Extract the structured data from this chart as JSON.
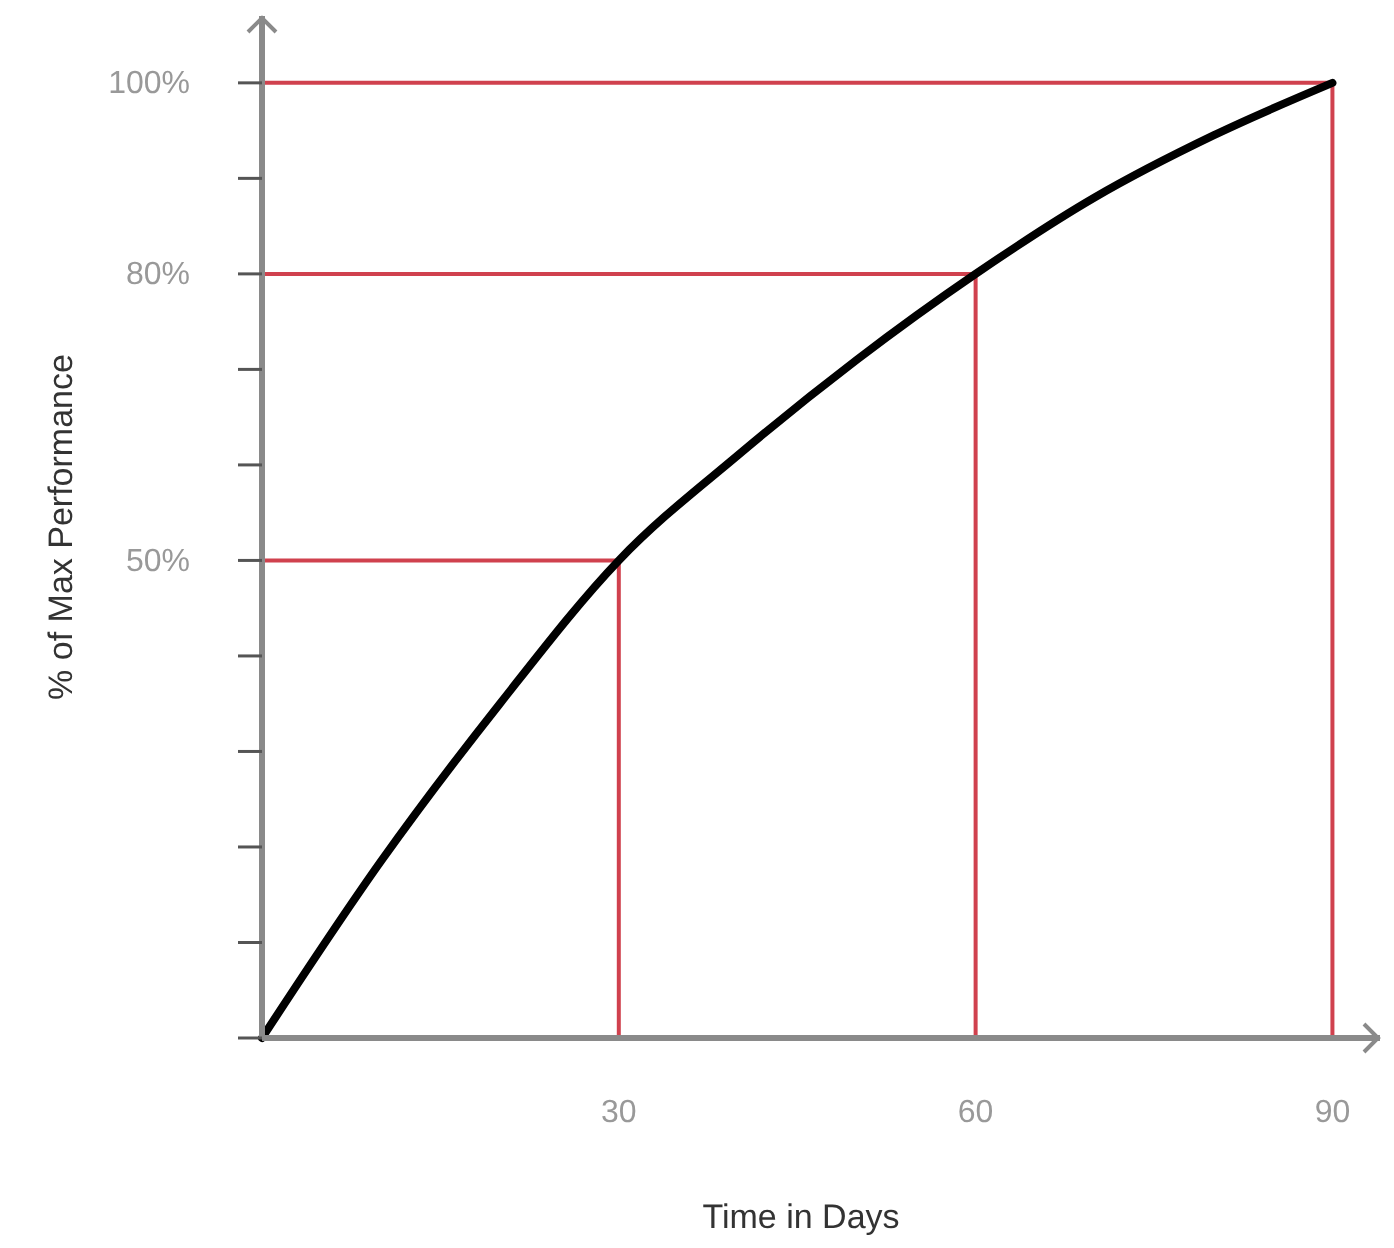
{
  "chart_data": {
    "type": "line",
    "xlabel": "Time in Days",
    "ylabel": "% of Max Performance",
    "x": [
      0,
      10,
      20,
      30,
      40,
      50,
      60,
      70,
      80,
      90
    ],
    "series": [
      {
        "color": "#000000",
        "values": [
          0,
          18.5,
          35,
          50,
          61,
          71,
          80,
          88,
          94.5,
          100
        ]
      }
    ],
    "xlim": [
      0,
      94
    ],
    "ylim": [
      0,
      107
    ],
    "xticks": [
      30,
      60,
      90
    ],
    "yticks": [
      {
        "value": 0,
        "label": null
      },
      {
        "value": 10,
        "label": null
      },
      {
        "value": 20,
        "label": null
      },
      {
        "value": 30,
        "label": null
      },
      {
        "value": 40,
        "label": null
      },
      {
        "value": 50,
        "label": "50%"
      },
      {
        "value": 60,
        "label": null
      },
      {
        "value": 70,
        "label": null
      },
      {
        "value": 80,
        "label": "80%"
      },
      {
        "value": 90,
        "label": null
      },
      {
        "value": 100,
        "label": "100%"
      }
    ],
    "ref_lines": [
      {
        "axis": "y",
        "value": 50,
        "color": "#d0414e"
      },
      {
        "axis": "y",
        "value": 80,
        "color": "#d0414e"
      },
      {
        "axis": "y",
        "value": 100,
        "color": "#d0414e"
      },
      {
        "axis": "x",
        "value": 30,
        "color": "#d0414e"
      },
      {
        "axis": "x",
        "value": 60,
        "color": "#d0414e"
      },
      {
        "axis": "x",
        "value": 90,
        "color": "#d0414e"
      }
    ],
    "grid": false
  }
}
